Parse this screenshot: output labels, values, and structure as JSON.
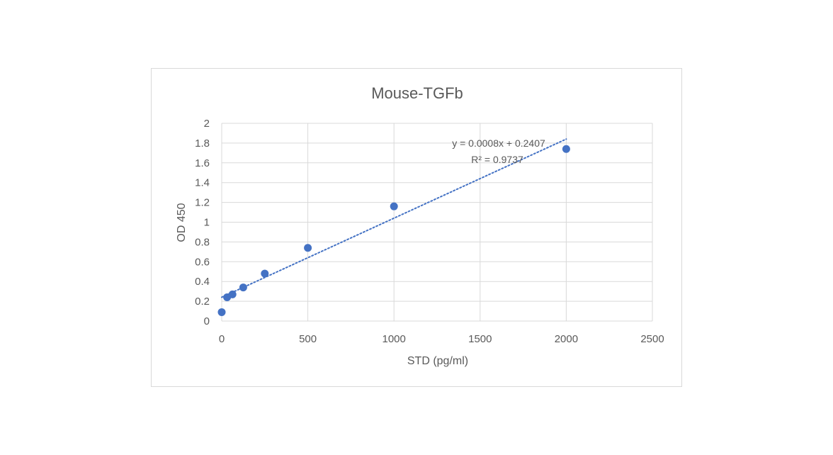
{
  "chart_data": {
    "type": "scatter",
    "title": "Mouse-TGFb",
    "xlabel": "STD (pg/ml)",
    "ylabel": "OD 450",
    "xlim": [
      0,
      2500
    ],
    "ylim": [
      0,
      2
    ],
    "x_ticks": [
      "0",
      "500",
      "1000",
      "1500",
      "2000",
      "2500"
    ],
    "y_ticks": [
      "0",
      "0.2",
      "0.4",
      "0.6",
      "0.8",
      "1",
      "1.2",
      "1.4",
      "1.6",
      "1.8",
      "2"
    ],
    "x_tick_values": [
      0,
      500,
      1000,
      1500,
      2000,
      2500
    ],
    "y_tick_values": [
      0,
      0.2,
      0.4,
      0.6,
      0.8,
      1,
      1.2,
      1.4,
      1.6,
      1.8,
      2
    ],
    "points": [
      {
        "x": 0,
        "y": 0.09
      },
      {
        "x": 31.25,
        "y": 0.24
      },
      {
        "x": 62.5,
        "y": 0.27
      },
      {
        "x": 125,
        "y": 0.34
      },
      {
        "x": 250,
        "y": 0.48
      },
      {
        "x": 500,
        "y": 0.74
      },
      {
        "x": 1000,
        "y": 1.16
      },
      {
        "x": 2000,
        "y": 1.74
      }
    ],
    "trendline": {
      "type": "linear",
      "slope": 0.0008,
      "intercept": 0.2407,
      "x_range": [
        0,
        2000
      ],
      "equation": "y = 0.0008x + 0.2407",
      "r_squared": "R² = 0.9737"
    },
    "grid": true,
    "legend": "none",
    "colors": {
      "points": "#4472c4",
      "trendline": "#4472c4",
      "grid": "#d9d9d9",
      "text": "#595959"
    }
  }
}
